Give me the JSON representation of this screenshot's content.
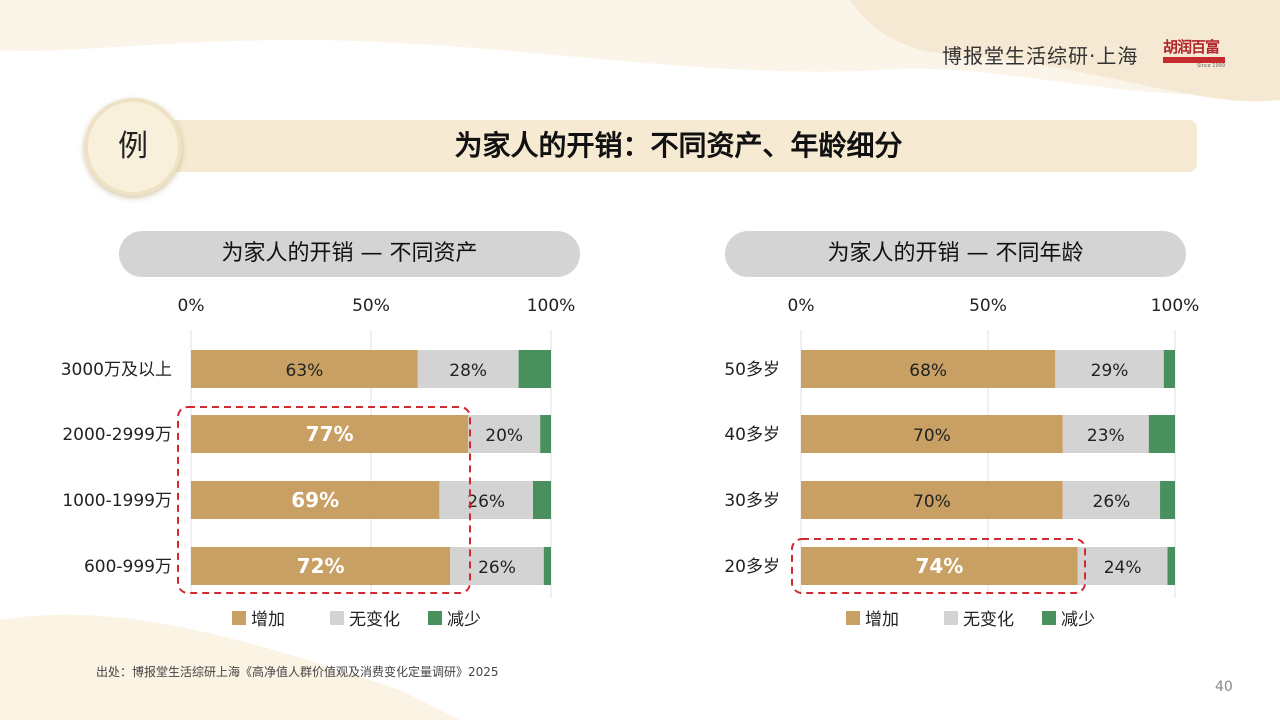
{
  "header": {
    "brand": "博报堂生活综研·上海",
    "logo_text": "胡润百富",
    "logo_sub": "Since 1999"
  },
  "slide": {
    "badge": "例",
    "title": "为家人的开销：不同资产、年龄细分",
    "source": "出处：博报堂生活综研上海《高净值人群价值观及消费变化定量调研》2025",
    "page_number": "40"
  },
  "colors": {
    "increase": "#c9a063",
    "no_change": "#d3d3d3",
    "decrease": "#4a8f5e",
    "highlight": "#d0292f"
  },
  "chart_data": [
    {
      "type": "bar",
      "orientation": "horizontal-stacked-100",
      "title": "为家人的开销 — 不同资产",
      "xticks": [
        "0%",
        "50%",
        "100%"
      ],
      "xlim": [
        0,
        100
      ],
      "categories": [
        "3000万及以上",
        "2000-2999万",
        "1000-1999万",
        "600-999万"
      ],
      "series": [
        {
          "name": "增加",
          "values": [
            63,
            77,
            69,
            72
          ]
        },
        {
          "name": "无变化",
          "values": [
            28,
            20,
            26,
            26
          ]
        },
        {
          "name": "减少",
          "values": [
            9,
            3,
            5,
            2
          ]
        }
      ],
      "labels": {
        "增加": [
          "63%",
          "77%",
          "69%",
          "72%"
        ],
        "无变化": [
          "28%",
          "20%",
          "26%",
          "26%"
        ]
      },
      "highlighted": [
        "2000-2999万",
        "1000-1999万",
        "600-999万"
      ],
      "legend": "bottom"
    },
    {
      "type": "bar",
      "orientation": "horizontal-stacked-100",
      "title": "为家人的开销 — 不同年龄",
      "xticks": [
        "0%",
        "50%",
        "100%"
      ],
      "xlim": [
        0,
        100
      ],
      "categories": [
        "50多岁",
        "40多岁",
        "30多岁",
        "20多岁"
      ],
      "series": [
        {
          "name": "增加",
          "values": [
            68,
            70,
            70,
            74
          ]
        },
        {
          "name": "无变化",
          "values": [
            29,
            23,
            26,
            24
          ]
        },
        {
          "name": "减少",
          "values": [
            3,
            7,
            4,
            2
          ]
        }
      ],
      "labels": {
        "增加": [
          "68%",
          "70%",
          "70%",
          "74%"
        ],
        "无变化": [
          "29%",
          "23%",
          "26%",
          "24%"
        ]
      },
      "highlighted": [
        "20多岁"
      ],
      "legend": "bottom"
    }
  ]
}
